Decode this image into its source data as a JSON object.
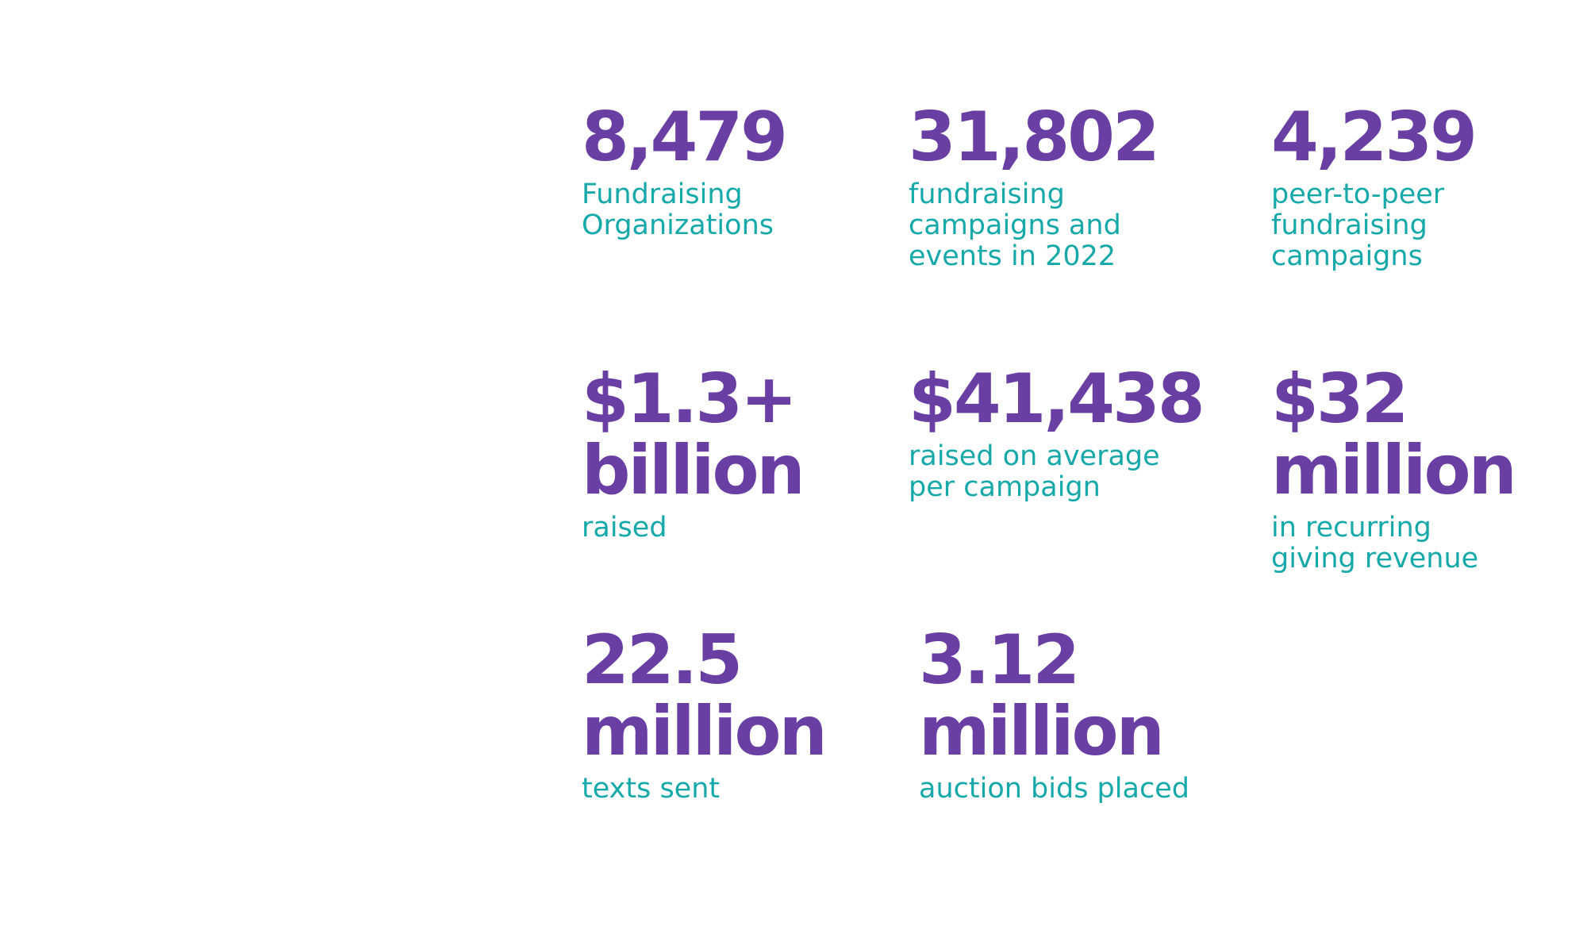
{
  "stats": [
    {
      "value_lines": [
        "8,479"
      ],
      "label_lines": [
        "Fundraising",
        "Organizations"
      ]
    },
    {
      "value_lines": [
        "31,802"
      ],
      "label_lines": [
        "fundraising",
        "campaigns and",
        "events in 2022"
      ]
    },
    {
      "value_lines": [
        "4,239"
      ],
      "label_lines": [
        "peer-to-peer",
        "fundraising",
        "campaigns"
      ]
    },
    {
      "value_lines": [
        "$1.3+",
        "billion"
      ],
      "label_lines": [
        "raised"
      ]
    },
    {
      "value_lines": [
        "$41,438"
      ],
      "label_lines": [
        "raised on average",
        "per campaign"
      ]
    },
    {
      "value_lines": [
        "$32",
        "million"
      ],
      "label_lines": [
        "in recurring",
        "giving revenue"
      ]
    },
    {
      "value_lines": [
        "22.5",
        "million"
      ],
      "label_lines": [
        "texts sent"
      ]
    },
    {
      "value_lines": [
        "3.12",
        "million"
      ],
      "label_lines": [
        "auction bids placed"
      ]
    }
  ]
}
